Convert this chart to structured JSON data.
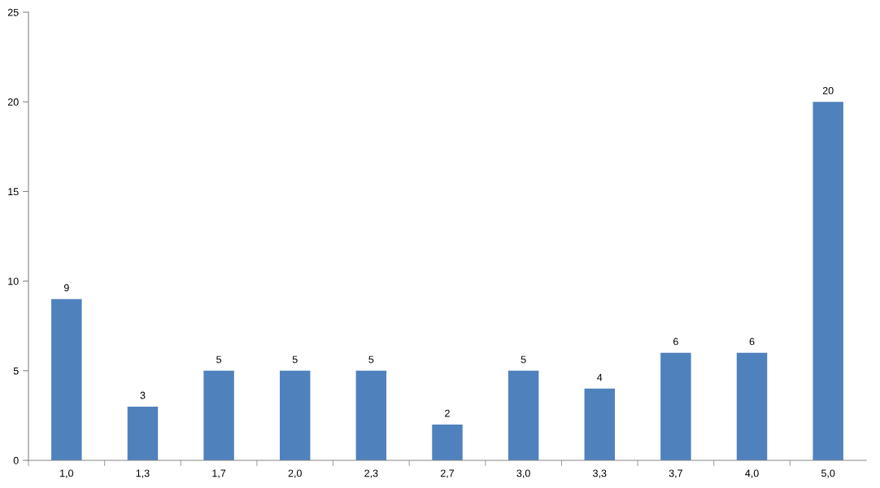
{
  "chart_data": {
    "type": "bar",
    "categories": [
      "1,0",
      "1,3",
      "1,7",
      "2,0",
      "2,3",
      "2,7",
      "3,0",
      "3,3",
      "3,7",
      "4,0",
      "5,0"
    ],
    "values": [
      9,
      3,
      5,
      5,
      5,
      2,
      5,
      4,
      6,
      6,
      20
    ],
    "color": "#4f81bd",
    "ylim": [
      0,
      25
    ],
    "yticks": [
      0,
      5,
      10,
      15,
      20,
      25
    ],
    "grid": false,
    "legend": false,
    "data_labels": true
  }
}
